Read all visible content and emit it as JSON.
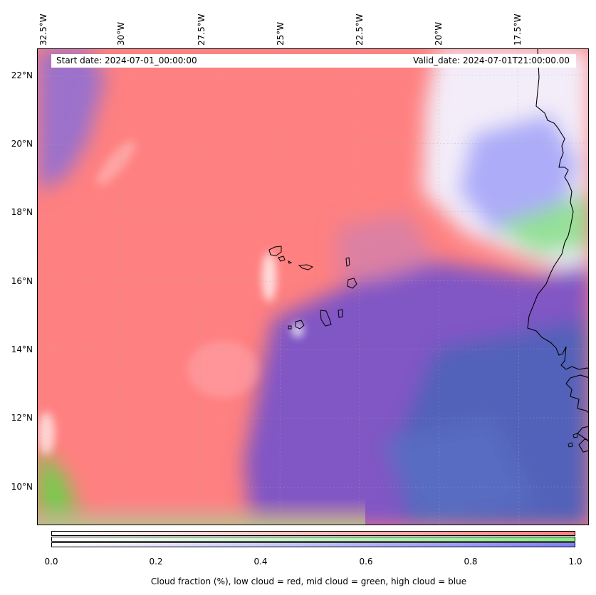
{
  "map": {
    "header": {
      "start_date": "Start date: 2024-07-01_00:00:00",
      "valid_date": "Valid_date: 2024-07-01T21:00:00.00"
    },
    "longitude_labels": [
      "32.5°W",
      "30°W",
      "27.5°W",
      "25°W",
      "22.5°W",
      "20°W",
      "17.5°W"
    ],
    "latitude_labels": [
      "22°N",
      "20°N",
      "18°N",
      "16°N",
      "14°N",
      "12°N",
      "10°N"
    ],
    "layer_colors": {
      "low_cloud": "#ff7f7f",
      "mid_cloud": "#7fe07f",
      "high_cloud": "#7f7fff",
      "overlap": "#6a5acd"
    },
    "colorbar": {
      "ticks": [
        "0.0",
        "0.2",
        "0.4",
        "0.6",
        "0.8",
        "1.0"
      ],
      "label": "Cloud fraction (%), low cloud = red, mid cloud = green, high cloud = blue"
    }
  }
}
